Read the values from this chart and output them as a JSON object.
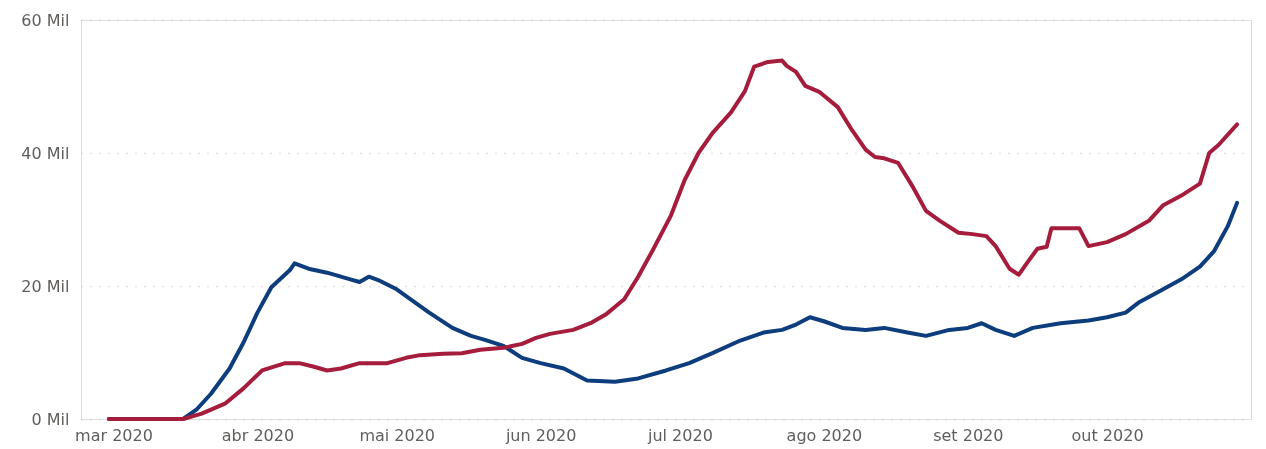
{
  "chart_data": {
    "type": "line",
    "xlim": [
      "2020-02-23",
      "2020-11-01"
    ],
    "xticks": [
      {
        "value": "2020-03-01",
        "label": "mar 2020"
      },
      {
        "value": "2020-04-01",
        "label": "abr 2020"
      },
      {
        "value": "2020-05-01",
        "label": "mai 2020"
      },
      {
        "value": "2020-06-01",
        "label": "jun 2020"
      },
      {
        "value": "2020-07-01",
        "label": "jul 2020"
      },
      {
        "value": "2020-08-01",
        "label": "ago 2020"
      },
      {
        "value": "2020-09-01",
        "label": "set 2020"
      },
      {
        "value": "2020-10-01",
        "label": "out 2020"
      }
    ],
    "ylim": [
      0,
      60
    ],
    "yticks": [
      {
        "value": 0,
        "label": "0 Mil"
      },
      {
        "value": 20,
        "label": "20 Mil"
      },
      {
        "value": 40,
        "label": "40 Mil"
      },
      {
        "value": 60,
        "label": "60 Mil"
      }
    ],
    "grid": "y",
    "legend": false,
    "marker": "none",
    "line_style": "solid",
    "series": [
      {
        "color": "#0d3d7c",
        "x": [
          "2020-02-29",
          "2020-03-16",
          "2020-03-19",
          "2020-03-22",
          "2020-03-26",
          "2020-03-29",
          "2020-04-01",
          "2020-04-04",
          "2020-04-08",
          "2020-04-09",
          "2020-04-12",
          "2020-04-16",
          "2020-04-21",
          "2020-04-23",
          "2020-04-25",
          "2020-04-27",
          "2020-05-01",
          "2020-05-04",
          "2020-05-08",
          "2020-05-13",
          "2020-05-17",
          "2020-05-20",
          "2020-05-24",
          "2020-05-28",
          "2020-06-01",
          "2020-06-06",
          "2020-06-11",
          "2020-06-17",
          "2020-06-22",
          "2020-06-28",
          "2020-07-03",
          "2020-07-08",
          "2020-07-14",
          "2020-07-19",
          "2020-07-23",
          "2020-07-26",
          "2020-07-29",
          "2020-08-01",
          "2020-08-05",
          "2020-08-10",
          "2020-08-14",
          "2020-08-19",
          "2020-08-23",
          "2020-08-28",
          "2020-09-01",
          "2020-09-04",
          "2020-09-07",
          "2020-09-11",
          "2020-09-15",
          "2020-09-21",
          "2020-09-27",
          "2020-10-01",
          "2020-10-05",
          "2020-10-08",
          "2020-10-12",
          "2020-10-17",
          "2020-10-21",
          "2020-10-24",
          "2020-10-27",
          "2020-10-29"
        ],
        "values": [
          0,
          0,
          1.5,
          3.8,
          7.6,
          11.5,
          16,
          19.8,
          22.4,
          23.4,
          22.6,
          22,
          21,
          20.6,
          21.4,
          20.9,
          19.5,
          18,
          16,
          13.7,
          12.5,
          11.9,
          11,
          9.2,
          8.4,
          7.6,
          5.8,
          5.6,
          6.1,
          7.3,
          8.4,
          9.9,
          11.8,
          13,
          13.4,
          14.2,
          15.3,
          14.7,
          13.7,
          13.4,
          13.7,
          13,
          12.5,
          13.4,
          13.7,
          14.4,
          13.4,
          12.5,
          13.7,
          14.4,
          14.8,
          15.3,
          16,
          17.6,
          19.1,
          21,
          22.9,
          25.2,
          29,
          32.5
        ]
      },
      {
        "color": "#a51c3c",
        "x": [
          "2020-02-29",
          "2020-03-16",
          "2020-03-20",
          "2020-03-25",
          "2020-03-29",
          "2020-04-02",
          "2020-04-07",
          "2020-04-10",
          "2020-04-13",
          "2020-04-16",
          "2020-04-19",
          "2020-04-23",
          "2020-04-26",
          "2020-04-29",
          "2020-05-03",
          "2020-05-06",
          "2020-05-11",
          "2020-05-15",
          "2020-05-19",
          "2020-05-24",
          "2020-05-28",
          "2020-05-31",
          "2020-06-03",
          "2020-06-08",
          "2020-06-12",
          "2020-06-15",
          "2020-06-19",
          "2020-06-22",
          "2020-06-25",
          "2020-06-29",
          "2020-07-02",
          "2020-07-05",
          "2020-07-08",
          "2020-07-12",
          "2020-07-15",
          "2020-07-17",
          "2020-07-20",
          "2020-07-23",
          "2020-07-24",
          "2020-07-26",
          "2020-07-28",
          "2020-07-31",
          "2020-08-04",
          "2020-08-07",
          "2020-08-10",
          "2020-08-12",
          "2020-08-14",
          "2020-08-17",
          "2020-08-20",
          "2020-08-23",
          "2020-08-26",
          "2020-08-30",
          "2020-09-02",
          "2020-09-05",
          "2020-09-07",
          "2020-09-10",
          "2020-09-12",
          "2020-09-14",
          "2020-09-16",
          "2020-09-18",
          "2020-09-19",
          "2020-09-22",
          "2020-09-25",
          "2020-09-27",
          "2020-10-01",
          "2020-10-05",
          "2020-10-10",
          "2020-10-13",
          "2020-10-17",
          "2020-10-21",
          "2020-10-23",
          "2020-10-25",
          "2020-10-29"
        ],
        "values": [
          0,
          0,
          0.8,
          2.3,
          4.6,
          7.3,
          8.4,
          8.4,
          7.9,
          7.3,
          7.6,
          8.4,
          8.4,
          8.4,
          9.2,
          9.6,
          9.8,
          9.9,
          10.4,
          10.7,
          11.3,
          12.2,
          12.8,
          13.4,
          14.5,
          15.7,
          18,
          21.4,
          25.2,
          30.5,
          35.9,
          40,
          43,
          46.1,
          49.3,
          53,
          53.7,
          53.9,
          53.1,
          52.2,
          50.1,
          49.2,
          46.9,
          43.5,
          40.5,
          39.4,
          39.2,
          38.5,
          35.1,
          31.3,
          29.8,
          28,
          27.8,
          27.5,
          26,
          22.6,
          21.7,
          23.7,
          25.6,
          25.9,
          28.7,
          28.7,
          28.7,
          26,
          26.6,
          27.8,
          29.8,
          32.1,
          33.6,
          35.4,
          40,
          41.2,
          44.3
        ]
      }
    ]
  }
}
